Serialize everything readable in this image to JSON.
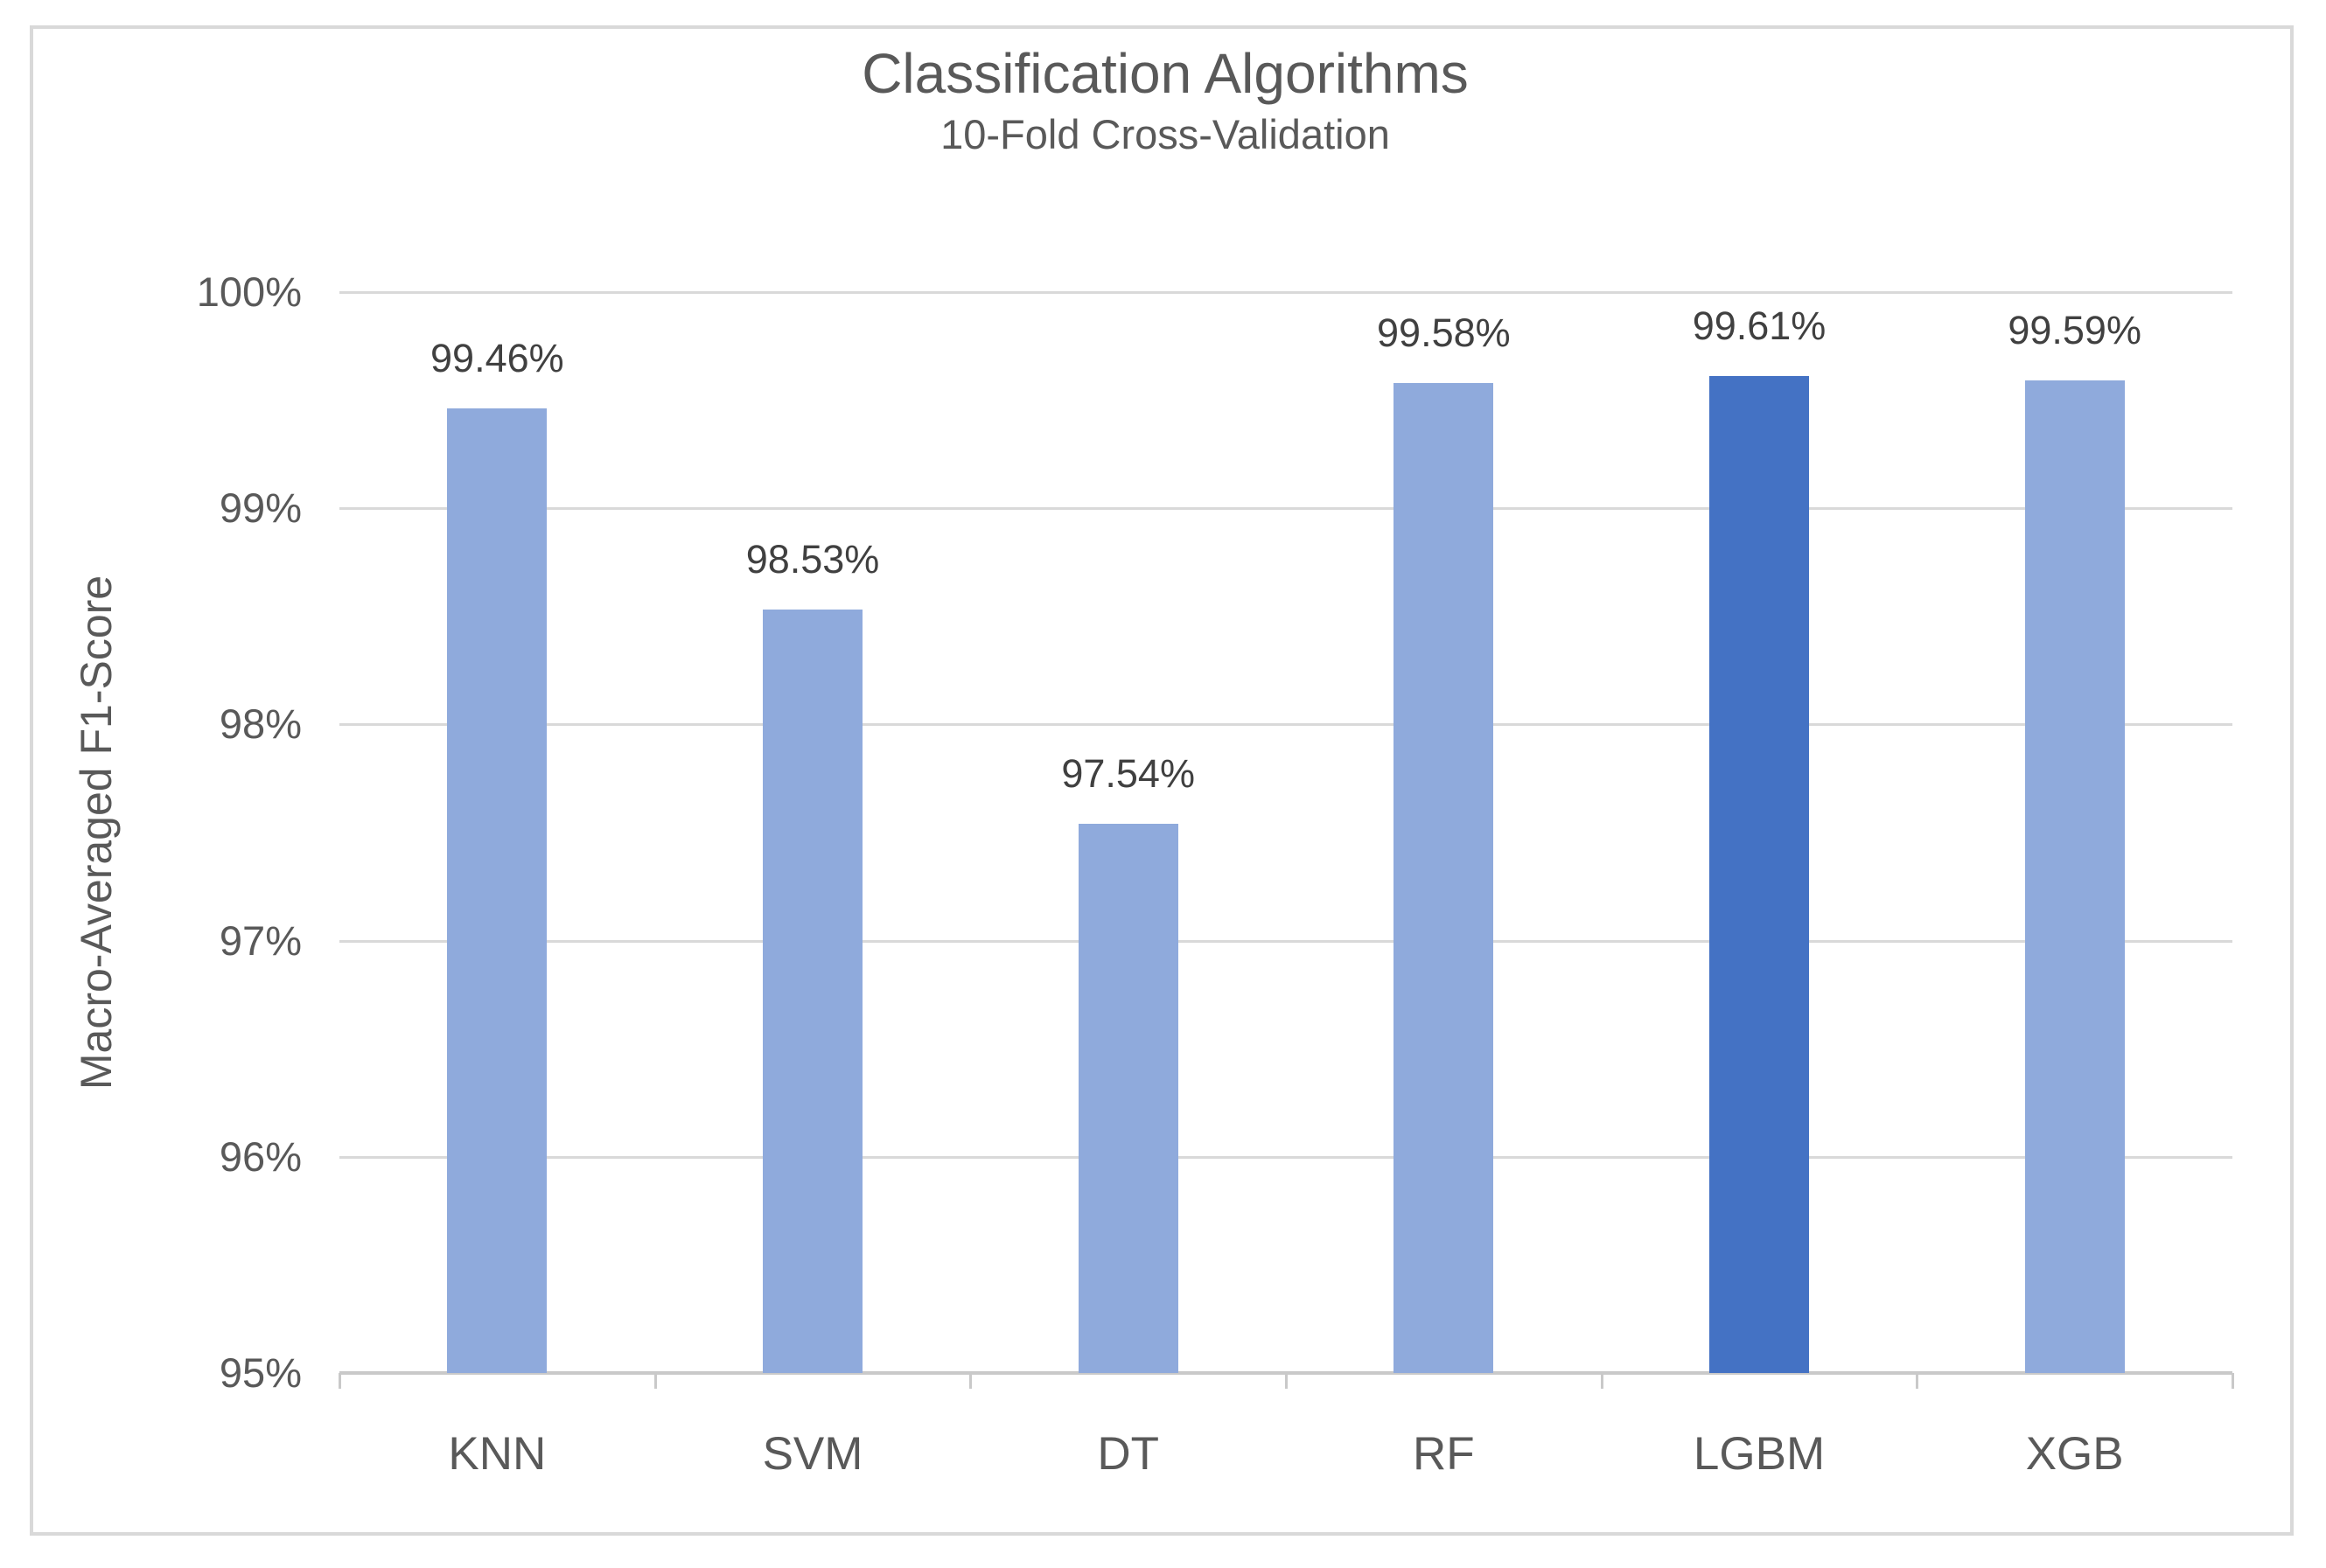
{
  "chart_data": {
    "type": "bar",
    "title": "Classification Algorithms",
    "subtitle": "10-Fold Cross-Validation",
    "ylabel": "Macro-Averaged F1-Score",
    "xlabel": "",
    "categories": [
      "KNN",
      "SVM",
      "DT",
      "RF",
      "LGBM",
      "XGB"
    ],
    "values": [
      99.46,
      98.53,
      97.54,
      99.58,
      99.61,
      99.59
    ],
    "data_labels": [
      "99.46%",
      "98.53%",
      "97.54%",
      "99.58%",
      "99.61%",
      "99.59%"
    ],
    "ylim": [
      95,
      100
    ],
    "ytick_step": 1,
    "ytick_labels": [
      "95%",
      "96%",
      "97%",
      "98%",
      "99%",
      "100%"
    ],
    "grid": "horizontal",
    "legend": "none",
    "highlighted_category": "LGBM",
    "colors": {
      "bar_default": "#8FAADC",
      "bar_highlight": "#4472C4",
      "gridline": "#D9D9D9",
      "axis_line": "#C9C9C9",
      "axis_text": "#595959",
      "data_label_text": "#404040",
      "frame_border": "#D9D9D9",
      "background": "#FFFFFF"
    }
  }
}
